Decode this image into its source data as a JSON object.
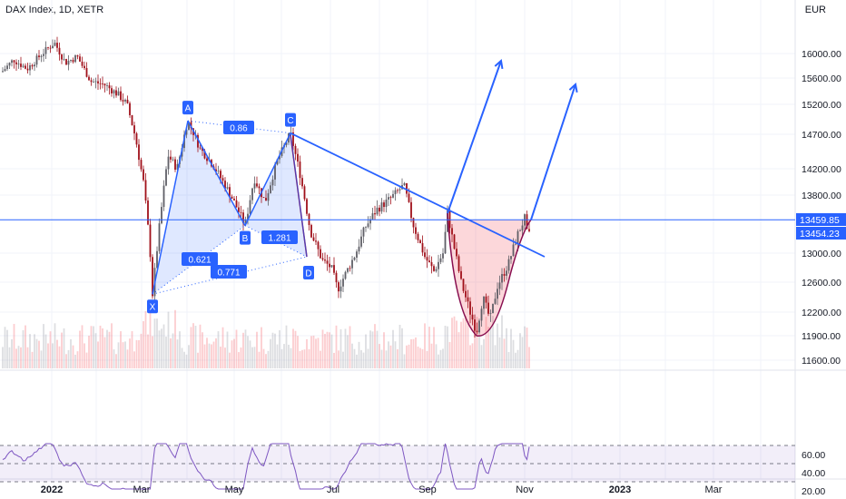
{
  "header": {
    "symbol_title": "DAX Index, 1D, XETR",
    "currency": "EUR"
  },
  "colors": {
    "up_candle": "#5f5f66",
    "down_candle": "#a0101a",
    "pattern_blue": "#2962ff",
    "pattern_fill": "rgba(41,98,255,0.15)",
    "cup_fill": "rgba(242,54,69,0.2)",
    "cup_line": "#880e4f",
    "rsi_line": "#7e57c2",
    "rsi_band": "rgba(126,87,194,0.1)",
    "grid": "#f0f3fa"
  },
  "chart_data": {
    "type": "candlestick",
    "price_axis": {
      "ticks": [
        16000,
        15600,
        15200,
        14700,
        14200,
        13800,
        13000,
        12600,
        12200,
        11900,
        11600
      ],
      "tick_labels": [
        "16000.00",
        "15600.00",
        "15200.00",
        "14700.00",
        "14200.00",
        "13800.00",
        "13000.00",
        "12600.00",
        "12200.00",
        "11900.00",
        "11600.00"
      ]
    },
    "time_axis": {
      "labels": [
        {
          "label": "2022",
          "bold": true
        },
        {
          "label": "Mar",
          "bold": false
        },
        {
          "label": "May",
          "bold": false
        },
        {
          "label": "Jul",
          "bold": false
        },
        {
          "label": "Sep",
          "bold": false
        },
        {
          "label": "Nov",
          "bold": false
        },
        {
          "label": "2023",
          "bold": true
        },
        {
          "label": "Mar",
          "bold": false
        }
      ]
    },
    "price_labels": [
      {
        "value": 13459.85,
        "text": "13459.85",
        "color": "#2962ff"
      },
      {
        "value": 13454.23,
        "text": "13454.23",
        "color": "#2962ff"
      }
    ],
    "harmonic_pattern": {
      "points": [
        {
          "label": "X",
          "price": 12440
        },
        {
          "label": "A",
          "price": 14925
        },
        {
          "label": "B",
          "price": 13380
        },
        {
          "label": "C",
          "price": 14720
        },
        {
          "label": "D",
          "price": 12950
        }
      ],
      "ratios": [
        "0.86",
        "1.281",
        "0.621",
        "0.771"
      ]
    },
    "rsi": {
      "ticks": [
        60,
        40,
        20
      ],
      "tick_labels": [
        "60.00",
        "40.00",
        "20.00"
      ],
      "upper_band": 70,
      "lower_band": 30
    }
  }
}
